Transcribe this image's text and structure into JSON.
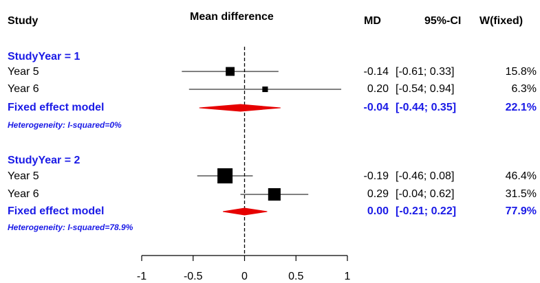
{
  "headers": {
    "study": "Study",
    "effect": "Mean difference",
    "md": "MD",
    "ci": "95%-CI",
    "weight": "W(fixed)"
  },
  "groups": [
    {
      "label": "StudyYear = 1",
      "studies": [
        {
          "name": "Year 5",
          "md_text": "-0.14",
          "ci_text": "[-0.61; 0.33]",
          "w_text": "15.8%"
        },
        {
          "name": "Year 6",
          "md_text": "0.20",
          "ci_text": "[-0.54; 0.94]",
          "w_text": "6.3%"
        }
      ],
      "pooled": {
        "name": "Fixed effect model",
        "md_text": "-0.04",
        "ci_text": "[-0.44; 0.35]",
        "w_text": "22.1%"
      },
      "heterogeneity": "Heterogeneity: I-squared=0%"
    },
    {
      "label": "StudyYear = 2",
      "studies": [
        {
          "name": "Year 5",
          "md_text": "-0.19",
          "ci_text": "[-0.46; 0.08]",
          "w_text": "46.4%"
        },
        {
          "name": "Year 6",
          "md_text": "0.29",
          "ci_text": "[-0.04; 0.62]",
          "w_text": "31.5%"
        }
      ],
      "pooled": {
        "name": "Fixed effect model",
        "md_text": "0.00",
        "ci_text": "[-0.21; 0.22]",
        "w_text": "77.9%"
      },
      "heterogeneity": "Heterogeneity: I-squared=78.9%"
    }
  ],
  "colors": {
    "accent_text": "#1a1ae6",
    "diamond": "#e60000",
    "square": "#000000"
  },
  "chart_data": {
    "type": "forest",
    "xlim": [
      -1,
      1
    ],
    "xticks": [
      "-1",
      "-0.5",
      "0",
      "0.5",
      "1"
    ],
    "xtick_values": [
      -1,
      -0.5,
      0,
      0.5,
      1
    ],
    "reference_line": 0,
    "reference_line_style": "dashed",
    "studies": [
      {
        "group": 1,
        "name": "Year 5",
        "md": -0.14,
        "lower": -0.61,
        "upper": 0.33,
        "weight": 15.8
      },
      {
        "group": 1,
        "name": "Year 6",
        "md": 0.2,
        "lower": -0.54,
        "upper": 0.94,
        "weight": 6.3
      },
      {
        "group": 2,
        "name": "Year 5",
        "md": -0.19,
        "lower": -0.46,
        "upper": 0.08,
        "weight": 46.4
      },
      {
        "group": 2,
        "name": "Year 6",
        "md": 0.29,
        "lower": -0.04,
        "upper": 0.62,
        "weight": 31.5
      }
    ],
    "pooled": [
      {
        "group": 1,
        "md": -0.04,
        "lower": -0.44,
        "upper": 0.35,
        "weight": 22.1
      },
      {
        "group": 2,
        "md": 0.0,
        "lower": -0.21,
        "upper": 0.22,
        "weight": 77.9
      }
    ]
  }
}
